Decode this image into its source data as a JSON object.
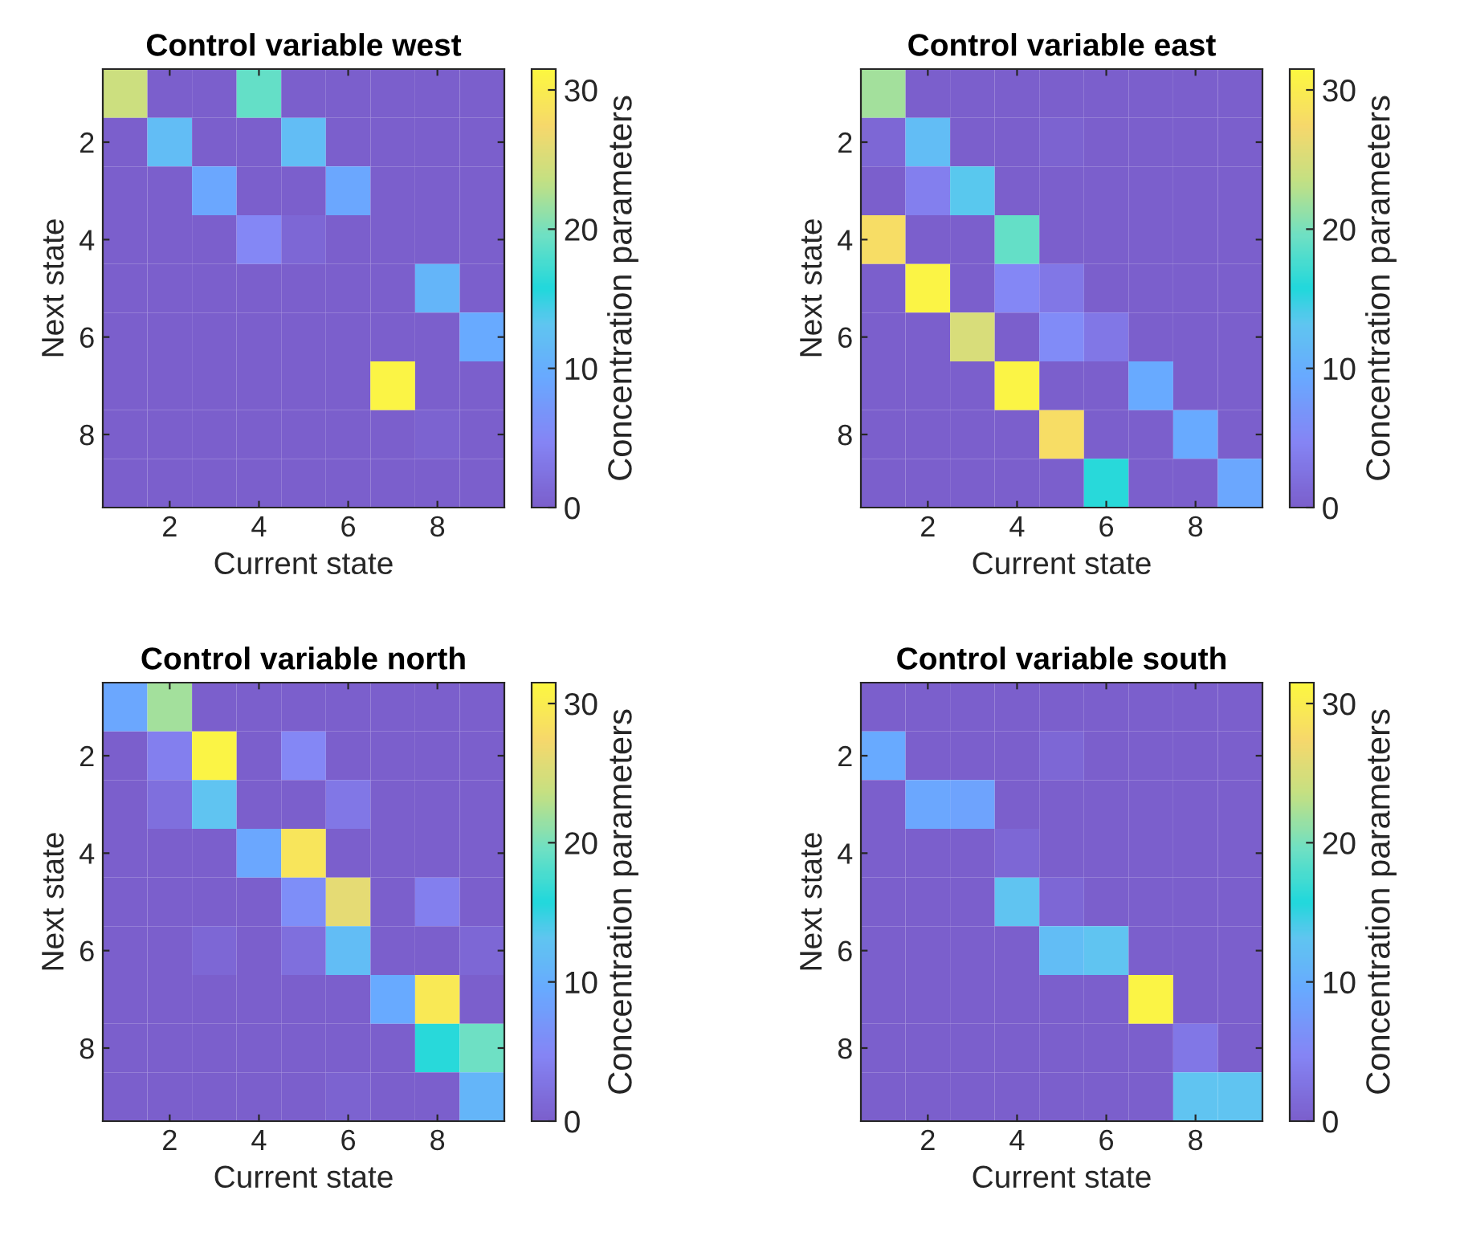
{
  "chart_data": [
    {
      "type": "heatmap",
      "title": "Control variable west",
      "xlabel": "Current state",
      "ylabel": "Next state",
      "clabel": "Concentration parameters",
      "categories": [
        null,
        "2",
        null,
        "4",
        null,
        "6",
        null,
        "8",
        null
      ],
      "y_categories": [
        null,
        "2",
        null,
        "4",
        null,
        "6",
        null,
        "8",
        null
      ],
      "clim": [
        0,
        31.5
      ],
      "cticks": [
        0,
        10,
        20,
        30
      ],
      "cells": [
        [
          24,
          0,
          0,
          19,
          0,
          0,
          0,
          0,
          0
        ],
        [
          0,
          12,
          0,
          0,
          12,
          0,
          0,
          0,
          0
        ],
        [
          0,
          0,
          9,
          0,
          0,
          9,
          0,
          0,
          0
        ],
        [
          0,
          0,
          0,
          5,
          1,
          0,
          0,
          0,
          0
        ],
        [
          0,
          0,
          0,
          0,
          0,
          0,
          0,
          11,
          0
        ],
        [
          0,
          0,
          0,
          0,
          0,
          0,
          0,
          0,
          9.5
        ],
        [
          0,
          0,
          0,
          0,
          0,
          0,
          31,
          0,
          0
        ],
        [
          0,
          0,
          0,
          0,
          0,
          0,
          0,
          0.5,
          0
        ],
        [
          0,
          0,
          0,
          0,
          0,
          0,
          0,
          0,
          0
        ]
      ]
    },
    {
      "type": "heatmap",
      "title": "Control variable east",
      "xlabel": "Current state",
      "ylabel": "Next state",
      "clabel": "Concentration parameters",
      "categories": [
        null,
        "2",
        null,
        "4",
        null,
        "6",
        null,
        "8",
        null
      ],
      "y_categories": [
        null,
        "2",
        null,
        "4",
        null,
        "6",
        null,
        "8",
        null
      ],
      "clim": [
        0,
        31.5
      ],
      "cticks": [
        0,
        10,
        20,
        30
      ],
      "cells": [
        [
          22,
          0,
          0,
          0,
          0,
          0,
          0,
          0,
          0
        ],
        [
          1,
          12,
          0,
          0,
          0.5,
          0,
          0,
          0,
          0
        ],
        [
          0,
          4,
          13.5,
          0,
          0,
          0,
          0,
          0,
          0
        ],
        [
          28,
          0,
          0,
          19,
          0,
          0,
          0,
          0,
          0
        ],
        [
          0,
          31,
          0,
          5,
          3,
          0,
          0,
          0,
          0
        ],
        [
          0,
          0,
          25,
          0,
          5.5,
          3,
          0,
          0,
          0
        ],
        [
          0,
          0,
          0,
          31,
          0,
          0,
          9.5,
          0,
          0
        ],
        [
          0,
          0,
          0,
          0,
          28,
          0,
          0,
          9.5,
          0
        ],
        [
          0,
          0,
          0,
          0,
          0,
          16,
          0,
          0,
          9
        ]
      ]
    },
    {
      "type": "heatmap",
      "title": "Control variable north",
      "xlabel": "Current state",
      "ylabel": "Next state",
      "clabel": "Concentration parameters",
      "categories": [
        null,
        "2",
        null,
        "4",
        null,
        "6",
        null,
        "8",
        null
      ],
      "y_categories": [
        null,
        "2",
        null,
        "4",
        null,
        "6",
        null,
        "8",
        null
      ],
      "clim": [
        0,
        31.5
      ],
      "cticks": [
        0,
        10,
        20,
        30
      ],
      "cells": [
        [
          9,
          22,
          0,
          0,
          0,
          0,
          0,
          0,
          0
        ],
        [
          0,
          4,
          31,
          0,
          5,
          0,
          0,
          0,
          0
        ],
        [
          0,
          2,
          13,
          0,
          0,
          3,
          0,
          0,
          0
        ],
        [
          0,
          0,
          0,
          9,
          29,
          0,
          0,
          0,
          0
        ],
        [
          0,
          0,
          0,
          0,
          6,
          26,
          0,
          4,
          0
        ],
        [
          0,
          0,
          1,
          0,
          2,
          12,
          0,
          0,
          1
        ],
        [
          0,
          0,
          0,
          0,
          0,
          0,
          9.5,
          29.5,
          0
        ],
        [
          0,
          0,
          0,
          0,
          0,
          0,
          0,
          16,
          19.5
        ],
        [
          0,
          0,
          0,
          0,
          0,
          0.5,
          0,
          0,
          11
        ]
      ]
    },
    {
      "type": "heatmap",
      "title": "Control variable south",
      "xlabel": "Current state",
      "ylabel": "Next state",
      "clabel": "Concentration parameters",
      "categories": [
        null,
        "2",
        null,
        "4",
        null,
        "6",
        null,
        "8",
        null
      ],
      "y_categories": [
        null,
        "2",
        null,
        "4",
        null,
        "6",
        null,
        "8",
        null
      ],
      "clim": [
        0,
        31.5
      ],
      "cticks": [
        0,
        10,
        20,
        30
      ],
      "cells": [
        [
          0,
          0,
          0,
          0,
          0,
          0,
          0,
          0,
          0
        ],
        [
          9.5,
          0,
          0,
          0,
          1,
          0,
          0,
          0,
          0
        ],
        [
          0,
          9,
          8.5,
          0,
          0,
          0,
          0,
          0,
          0
        ],
        [
          0,
          0,
          0,
          1,
          0,
          0,
          0,
          0,
          0
        ],
        [
          0,
          0,
          0,
          13,
          1,
          0,
          0,
          0,
          0
        ],
        [
          0,
          0,
          0,
          0,
          12,
          13,
          0,
          0,
          0
        ],
        [
          0,
          0,
          0,
          0,
          0,
          0,
          31,
          0,
          0
        ],
        [
          0,
          0,
          0,
          0,
          0,
          0,
          0,
          3,
          0
        ],
        [
          0,
          0,
          0,
          0,
          0,
          0,
          0,
          13,
          13
        ]
      ]
    }
  ]
}
